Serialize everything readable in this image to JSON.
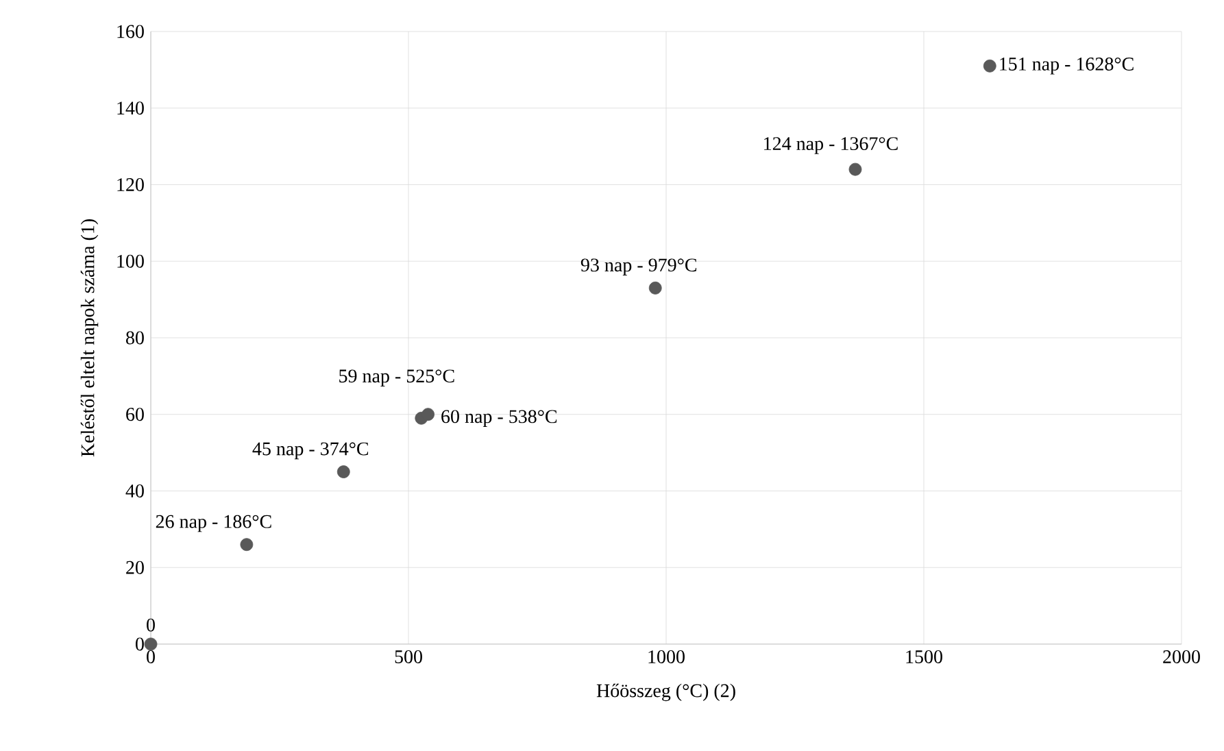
{
  "chart_data": {
    "type": "scatter",
    "xlabel": "Hőösszeg (°C) (2)",
    "ylabel": "Keléstől eltelt napok száma (1)",
    "x": [
      0,
      186,
      374,
      525,
      538,
      979,
      1367,
      1628
    ],
    "values": [
      0,
      26,
      45,
      59,
      60,
      93,
      124,
      151
    ],
    "color": "#595959",
    "marker": "circle",
    "grid": true,
    "xlim": [
      0,
      2000
    ],
    "xticks": [
      0,
      500,
      1000,
      1500,
      2000
    ],
    "ylim": [
      0,
      160
    ],
    "yticks": [
      0,
      20,
      40,
      60,
      80,
      100,
      120,
      140,
      160
    ],
    "annotations": [
      {
        "text": "0",
        "x": 0,
        "y": 0
      },
      {
        "text": "26 nap - 186°C",
        "x": 186,
        "y": 26
      },
      {
        "text": "45 nap - 374°C",
        "x": 374,
        "y": 45
      },
      {
        "text": "59 nap - 525°C",
        "x": 525,
        "y": 59
      },
      {
        "text": "60 nap - 538°C",
        "x": 538,
        "y": 60
      },
      {
        "text": "93 nap - 979°C",
        "x": 979,
        "y": 93
      },
      {
        "text": "124 nap - 1367°C",
        "x": 1367,
        "y": 124
      },
      {
        "text": "151 nap - 1628°C",
        "x": 1628,
        "y": 151
      }
    ]
  }
}
